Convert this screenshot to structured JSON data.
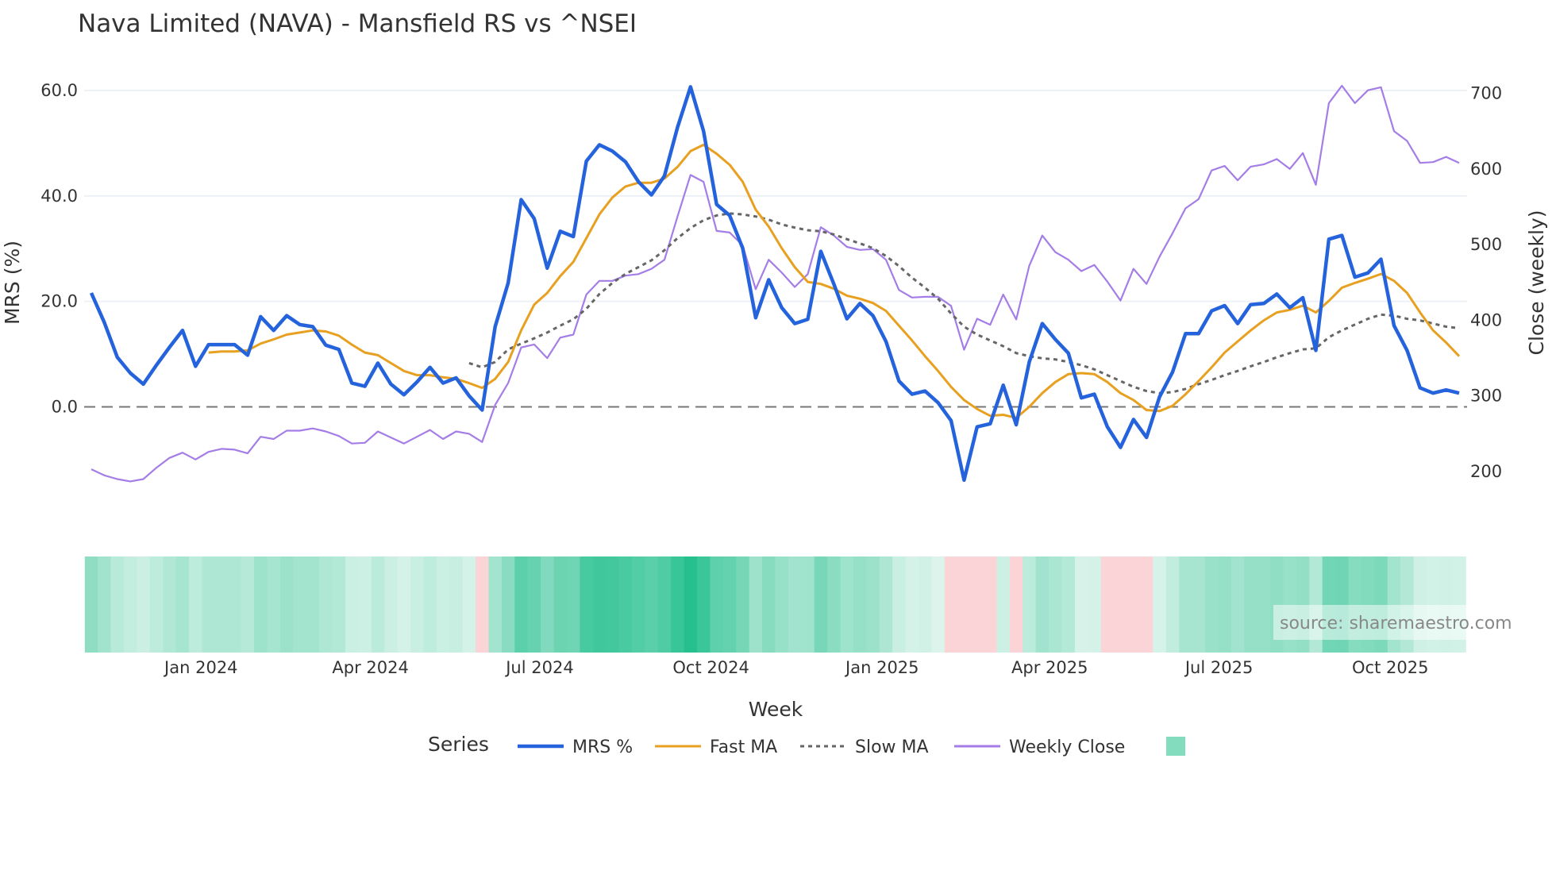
{
  "chart_data": {
    "type": "line",
    "title": "Nava Limited (NAVA) - Mansfield RS vs ^NSEI",
    "xlabel": "Week",
    "ylabel": "MRS (%)",
    "y2label": "Close (weekly)",
    "x_start": "2023-11-03",
    "x_step_days": 7,
    "ylim": [
      -15,
      62
    ],
    "y2lim": [
      150,
      720
    ],
    "yticks": [
      {
        "v": 0,
        "label": "0.0"
      },
      {
        "v": 20,
        "label": "20.0"
      },
      {
        "v": 40,
        "label": "40.0"
      },
      {
        "v": 60,
        "label": "60.0"
      }
    ],
    "y2ticks": [
      {
        "v": 200,
        "label": "200"
      },
      {
        "v": 300,
        "label": "300"
      },
      {
        "v": 400,
        "label": "400"
      },
      {
        "v": 500,
        "label": "500"
      },
      {
        "v": 600,
        "label": "600"
      },
      {
        "v": 700,
        "label": "700"
      }
    ],
    "xticks": [
      {
        "date": "2024-01-01",
        "label": "Jan 2024"
      },
      {
        "date": "2024-04-01",
        "label": "Apr 2024"
      },
      {
        "date": "2024-07-01",
        "label": "Jul 2024"
      },
      {
        "date": "2024-10-01",
        "label": "Oct 2024"
      },
      {
        "date": "2025-01-01",
        "label": "Jan 2025"
      },
      {
        "date": "2025-04-01",
        "label": "Apr 2025"
      },
      {
        "date": "2025-07-01",
        "label": "Jul 2025"
      },
      {
        "date": "2025-10-01",
        "label": "Oct 2025"
      }
    ],
    "legend_title": "Series",
    "legend_position": "bottom",
    "series": [
      {
        "name": "MRS %",
        "color": "#2563dc",
        "axis": "left",
        "start": 0,
        "values": [
          21.6,
          16,
          9.4,
          6.4,
          4.3,
          7.9,
          11.3,
          14.5,
          7.7,
          11.8,
          11.8,
          11.8,
          9.8,
          17.1,
          14.5,
          17.3,
          15.6,
          15.2,
          11.7,
          10.9,
          4.5,
          3.9,
          8.3,
          4.3,
          2.3,
          4.7,
          7.5,
          4.5,
          5.5,
          2.1,
          -0.6,
          15.2,
          23.5,
          39.3,
          35.7,
          26.3,
          33.3,
          32.3,
          46.6,
          49.7,
          48.5,
          46.5,
          42.7,
          40.2,
          43.8,
          53,
          60.7,
          52.3,
          38.4,
          36.3,
          30.1,
          16.9,
          24.1,
          18.8,
          15.8,
          16.6,
          29.5,
          23.3,
          16.7,
          19.6,
          17.3,
          12.4,
          4.9,
          2.4,
          3,
          0.8,
          -2.6,
          -13.9,
          -3.8,
          -3.2,
          4.1,
          -3.4,
          8.5,
          15.8,
          12.8,
          10.2,
          1.7,
          2.4,
          -3.8,
          -7.7,
          -2.4,
          -5.8,
          1.9,
          6.6,
          13.9,
          13.9,
          18.2,
          19.2,
          15.8,
          19.4,
          19.6,
          21.4,
          18.8,
          20.7,
          10.7,
          31.8,
          32.5,
          24.6,
          25.4,
          28,
          15.4,
          10.7,
          3.6,
          2.6,
          3.2,
          2.6
        ]
      },
      {
        "name": "Fast MA",
        "color": "#e8a020",
        "axis": "left",
        "start": 9,
        "values": [
          10.3,
          10.5,
          10.5,
          10.7,
          12,
          12.8,
          13.7,
          14.1,
          14.5,
          14.3,
          13.5,
          11.8,
          10.3,
          9.8,
          8.3,
          6.8,
          6,
          6,
          5.6,
          5.3,
          4.5,
          3.6,
          5.3,
          8.5,
          14.5,
          19.4,
          21.6,
          24.8,
          27.5,
          32,
          36.5,
          39.7,
          41.8,
          42.5,
          42.5,
          43.3,
          45.5,
          48.5,
          49.7,
          48,
          45.9,
          42.7,
          37.4,
          34.2,
          30.1,
          26.5,
          23.7,
          23.3,
          22.4,
          21.1,
          20.5,
          19.7,
          18.2,
          15.4,
          12.6,
          9.6,
          6.8,
          3.8,
          1.3,
          -0.4,
          -1.7,
          -1.5,
          -2.1,
          0,
          2.6,
          4.7,
          6.2,
          6.4,
          6.2,
          4.7,
          2.6,
          1.3,
          -0.6,
          -0.8,
          0.2,
          2.4,
          4.9,
          7.5,
          10.3,
          12.4,
          14.5,
          16.4,
          17.9,
          18.4,
          19.2,
          17.9,
          20.1,
          22.6,
          23.5,
          24.3,
          25.2,
          23.9,
          21.6,
          17.9,
          14.5,
          12.2,
          9.6
        ]
      },
      {
        "name": "Slow MA",
        "color": "#666666",
        "axis": "left",
        "dash": true,
        "start": 29,
        "values": [
          8.3,
          7.5,
          8.5,
          10.9,
          12,
          13,
          14.1,
          15.4,
          16.6,
          18.6,
          21.4,
          23.5,
          25.2,
          26.5,
          27.8,
          29.7,
          32,
          33.9,
          35.4,
          36.3,
          36.7,
          36.5,
          36.1,
          35.5,
          34.6,
          34,
          33.5,
          33.3,
          32.7,
          31.8,
          31,
          30.1,
          28.6,
          26.7,
          24.5,
          22.6,
          20.5,
          17.7,
          15.2,
          13.7,
          12.6,
          11.5,
          10.2,
          9.6,
          9.2,
          9,
          8.5,
          7.9,
          7.1,
          6,
          4.9,
          3.8,
          3,
          2.6,
          2.8,
          3.4,
          4.3,
          5.1,
          6,
          6.8,
          7.7,
          8.5,
          9.4,
          10.2,
          10.9,
          11.1,
          13.2,
          14.5,
          15.6,
          16.7,
          17.5,
          17.3,
          16.7,
          16.4,
          15.8,
          15.2,
          14.9
        ]
      },
      {
        "name": "Weekly Close",
        "color": "#a47de6",
        "axis": "right",
        "start": 0,
        "values": [
          203,
          195,
          190,
          187,
          190,
          205,
          218,
          225,
          216,
          226,
          230,
          229,
          224,
          246,
          243,
          254,
          254,
          257,
          253,
          247,
          237,
          238,
          253,
          245,
          237,
          246,
          255,
          243,
          253,
          250,
          239,
          288,
          317,
          364,
          368,
          350,
          377,
          381,
          434,
          452,
          452,
          459,
          461,
          468,
          480,
          537,
          592,
          583,
          518,
          516,
          499,
          441,
          480,
          463,
          444,
          461,
          523,
          512,
          497,
          493,
          494,
          480,
          440,
          430,
          431,
          431,
          419,
          361,
          402,
          394,
          434,
          401,
          472,
          512,
          490,
          480,
          465,
          473,
          451,
          426,
          468,
          448,
          484,
          515,
          548,
          560,
          598,
          604,
          585,
          603,
          606,
          613,
          600,
          621,
          579,
          687,
          710,
          687,
          704,
          708,
          650,
          637,
          608,
          609,
          616,
          608
        ]
      }
    ],
    "heatmap": {
      "source_series": "MRS %",
      "positive_color": "#26c08e",
      "negative_color": "#fad4d6",
      "legend_color": "#84dcbf"
    },
    "watermark": "source: sharemaestro.com"
  }
}
